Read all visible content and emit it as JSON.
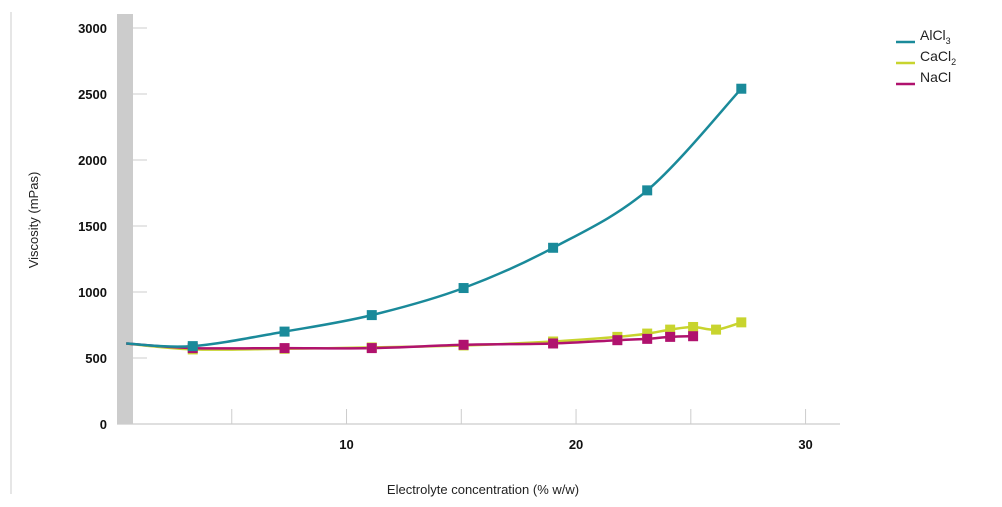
{
  "chart_data": {
    "type": "line",
    "xlabel": "Electrolyte concentration (% w/w)",
    "ylabel": "Viscosity (mPas)",
    "xlim": [
      0,
      31.5
    ],
    "ylim": [
      0,
      3000
    ],
    "x_ticks": [
      10,
      20,
      30
    ],
    "x_minor_ticks": [
      5,
      15,
      25
    ],
    "y_ticks": [
      0,
      500,
      1000,
      1500,
      2000,
      2500,
      3000
    ],
    "legend_position": "top-right",
    "grid": false,
    "series": [
      {
        "name": "AlCl",
        "subscript": "3",
        "color": "#1a8a9a",
        "start": [
          0.4,
          610
        ],
        "x": [
          3.3,
          7.3,
          11.1,
          15.1,
          19.0,
          23.1,
          27.2
        ],
        "y": [
          590,
          700,
          825,
          1030,
          1335,
          1770,
          2540
        ]
      },
      {
        "name": "CaCl",
        "subscript": "2",
        "color": "#c8d42e",
        "start": [
          0.4,
          610
        ],
        "x": [
          3.3,
          7.3,
          11.1,
          15.1,
          19.0,
          21.8,
          23.1,
          24.1,
          25.1,
          26.1,
          27.2
        ],
        "y": [
          565,
          570,
          580,
          595,
          625,
          660,
          685,
          715,
          735,
          715,
          770
        ]
      },
      {
        "name": "NaCl",
        "subscript": "",
        "color": "#b0126e",
        "start": [
          0.4,
          610
        ],
        "x": [
          3.3,
          7.3,
          11.1,
          15.1,
          19.0,
          21.8,
          23.1,
          24.1,
          25.1
        ],
        "y": [
          575,
          575,
          575,
          600,
          610,
          635,
          645,
          660,
          665
        ]
      }
    ]
  }
}
